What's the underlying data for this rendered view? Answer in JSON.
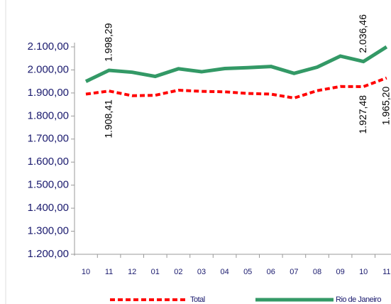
{
  "chart_data": {
    "type": "line",
    "categories": [
      "10",
      "11",
      "12",
      "01",
      "02",
      "03",
      "04",
      "05",
      "06",
      "07",
      "08",
      "09",
      "10",
      "11"
    ],
    "series": [
      {
        "name": "Total",
        "color": "#ff0000",
        "dashed": true,
        "values": [
          1895,
          1908.41,
          1888,
          1890,
          1912,
          1907,
          1905,
          1898,
          1895,
          1878,
          1910,
          1928,
          1927.48,
          1965.2
        ],
        "value_labels": [
          null,
          "1.908,41",
          null,
          null,
          null,
          null,
          null,
          null,
          null,
          null,
          null,
          null,
          "1.927,48",
          "1.965,20"
        ]
      },
      {
        "name": "Rio de Janeiro",
        "color": "#339966",
        "dashed": false,
        "values": [
          1950,
          1998.29,
          1990,
          1972,
          2005,
          1992,
          2006,
          2010,
          2015,
          1985,
          2012,
          2060,
          2036.46,
          2100
        ],
        "value_labels": [
          null,
          "1.998,29",
          null,
          null,
          null,
          null,
          null,
          null,
          null,
          null,
          null,
          null,
          "2.036,46",
          null
        ]
      }
    ],
    "ylim": [
      1200,
      2100
    ],
    "yticks": [
      {
        "value": 1200,
        "label": "1.200,00"
      },
      {
        "value": 1300,
        "label": "1.300,00"
      },
      {
        "value": 1400,
        "label": "1.400,00"
      },
      {
        "value": 1500,
        "label": "1.500,00"
      },
      {
        "value": 1600,
        "label": "1.600,00"
      },
      {
        "value": 1700,
        "label": "1.700,00"
      },
      {
        "value": 1800,
        "label": "1.800,00"
      },
      {
        "value": 1900,
        "label": "1.900,00"
      },
      {
        "value": 2000,
        "label": "2.000,00"
      },
      {
        "value": 2100,
        "label": "2.100,00"
      }
    ],
    "legend": "bottom"
  }
}
